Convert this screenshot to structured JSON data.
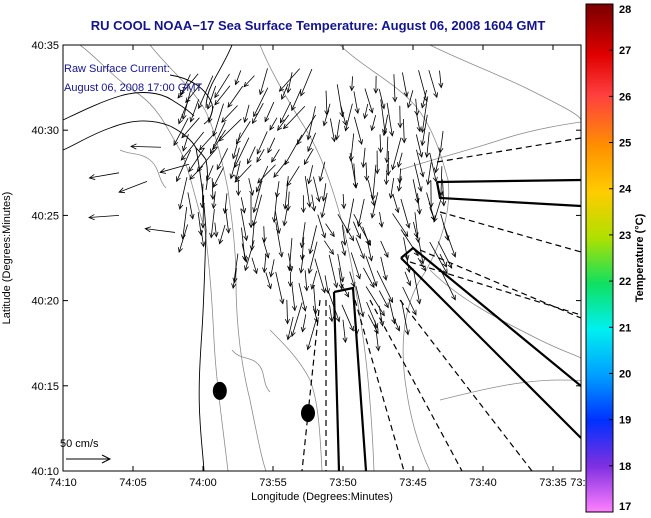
{
  "chart_data": {
    "type": "map-vector-field",
    "title": "RU COOL  NOAA−17  Sea Surface Temperature:  August 06, 2008 1604 GMT",
    "xlabel": "Longitude (Degrees:Minutes)",
    "ylabel": "Latitude (Degrees:Minutes)",
    "xlim_min": [
      -70,
      -33
    ],
    "ylim_min": [
      10,
      35
    ],
    "x_ticks": [
      {
        "value": -70,
        "label": "74:10"
      },
      {
        "value": -65,
        "label": "74:05"
      },
      {
        "value": -60,
        "label": "74:00"
      },
      {
        "value": -55,
        "label": "73:55"
      },
      {
        "value": -50,
        "label": "73:50"
      },
      {
        "value": -45,
        "label": "73:45"
      },
      {
        "value": -40,
        "label": "73:40"
      },
      {
        "value": -35,
        "label": "73:35"
      },
      {
        "value": -33,
        "label": "73:3"
      }
    ],
    "y_ticks": [
      {
        "value": 10,
        "label": "40:10"
      },
      {
        "value": 15,
        "label": "40:15"
      },
      {
        "value": 20,
        "label": "40:20"
      },
      {
        "value": 25,
        "label": "40:25"
      },
      {
        "value": 30,
        "label": "40:30"
      },
      {
        "value": 35,
        "label": "40:35"
      }
    ],
    "annotation_line1": "Raw Surface Current:",
    "annotation_line2": "August 06, 2008 17:00 GMT",
    "scale_label": "50 cm/s",
    "colorbar": {
      "label": "Temperature (°C)",
      "min": 17,
      "max": 28,
      "ticks": [
        "28",
        "27",
        "26",
        "25",
        "24",
        "23",
        "22",
        "21",
        "20",
        "19",
        "18",
        "17"
      ]
    },
    "vector_field_region": {
      "lon_min": [
        -61,
        -43
      ],
      "lat_min": [
        19,
        34
      ],
      "dominant_direction": "south / south-southeast"
    },
    "markers": [
      {
        "name": "buoy-west",
        "lon_min": -58.8,
        "lat_min": 14.7
      },
      {
        "name": "buoy-east",
        "lon_min": -52.5,
        "lat_min": 13.4
      }
    ]
  },
  "colors": {
    "title": "#14148c",
    "coast": "#000000",
    "bathymetry": "#8c8c8c",
    "vectors": "#000000"
  }
}
